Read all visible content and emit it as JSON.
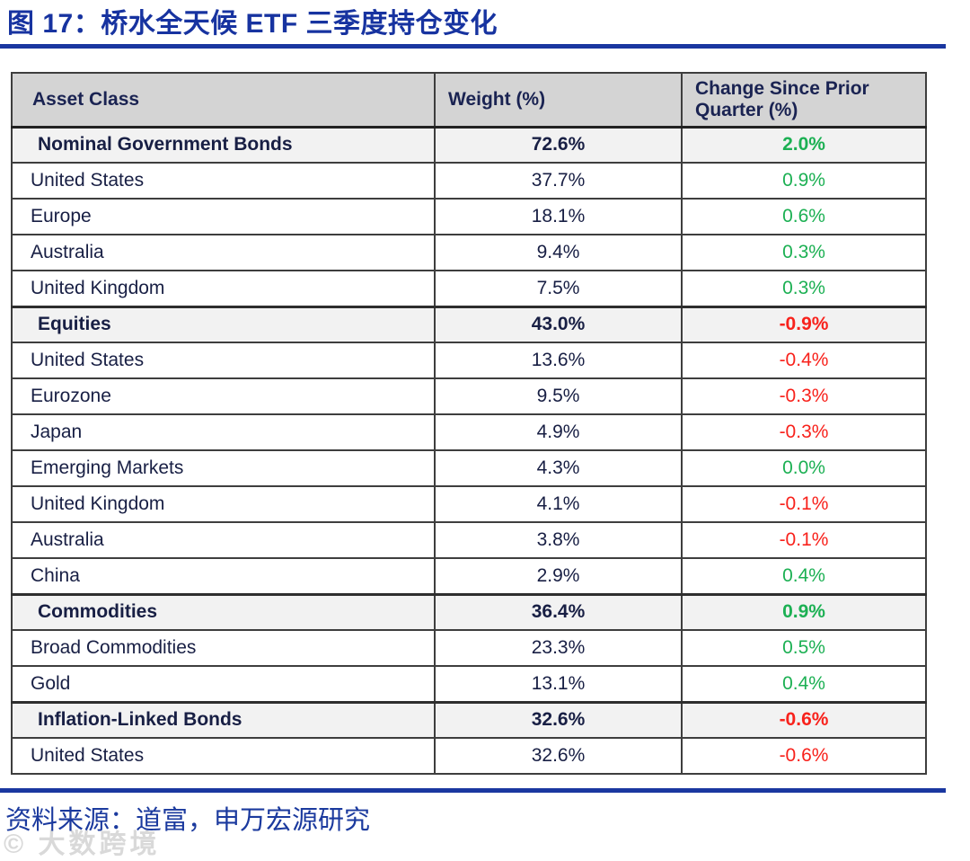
{
  "header": {
    "title": "图 17：桥水全天候 ETF 三季度持仓变化"
  },
  "footer": {
    "source": "资料来源：道富，申万宏源研究",
    "watermark": "© 大数跨境"
  },
  "colors": {
    "title_blue": "#1733A0",
    "rule_blue": "#1A37A0",
    "header_bg": "#D4D4D4",
    "section_bg": "#F2F2F2",
    "text_navy": "#181F44",
    "positive_green": "#1CB053",
    "negative_red": "#F8221C",
    "border_gray": "#3E3E3E"
  },
  "chart_data": {
    "type": "table",
    "title": "桥水全天候 ETF 三季度持仓变化",
    "columns": [
      "Asset Class",
      "Weight (%)",
      "Change Since Prior Quarter (%)"
    ],
    "rows": [
      {
        "asset": "Nominal Government Bonds",
        "weight": "72.6%",
        "change": "2.0%",
        "section": true,
        "trend": "up"
      },
      {
        "asset": "United States",
        "weight": "37.7%",
        "change": "0.9%",
        "section": false,
        "trend": "up"
      },
      {
        "asset": "Europe",
        "weight": "18.1%",
        "change": "0.6%",
        "section": false,
        "trend": "up"
      },
      {
        "asset": "Australia",
        "weight": "9.4%",
        "change": "0.3%",
        "section": false,
        "trend": "up"
      },
      {
        "asset": "United Kingdom",
        "weight": "7.5%",
        "change": "0.3%",
        "section": false,
        "trend": "up"
      },
      {
        "asset": "Equities",
        "weight": "43.0%",
        "change": "-0.9%",
        "section": true,
        "trend": "down"
      },
      {
        "asset": "United States",
        "weight": "13.6%",
        "change": "-0.4%",
        "section": false,
        "trend": "down"
      },
      {
        "asset": "Eurozone",
        "weight": "9.5%",
        "change": "-0.3%",
        "section": false,
        "trend": "down"
      },
      {
        "asset": "Japan",
        "weight": "4.9%",
        "change": "-0.3%",
        "section": false,
        "trend": "down"
      },
      {
        "asset": "Emerging Markets",
        "weight": "4.3%",
        "change": "0.0%",
        "section": false,
        "trend": "up"
      },
      {
        "asset": "United Kingdom",
        "weight": "4.1%",
        "change": "-0.1%",
        "section": false,
        "trend": "down"
      },
      {
        "asset": "Australia",
        "weight": "3.8%",
        "change": "-0.1%",
        "section": false,
        "trend": "down"
      },
      {
        "asset": "China",
        "weight": "2.9%",
        "change": "0.4%",
        "section": false,
        "trend": "up"
      },
      {
        "asset": "Commodities",
        "weight": "36.4%",
        "change": "0.9%",
        "section": true,
        "trend": "up"
      },
      {
        "asset": "Broad Commodities",
        "weight": "23.3%",
        "change": "0.5%",
        "section": false,
        "trend": "up"
      },
      {
        "asset": "Gold",
        "weight": "13.1%",
        "change": "0.4%",
        "section": false,
        "trend": "up"
      },
      {
        "asset": "Inflation-Linked Bonds",
        "weight": "32.6%",
        "change": "-0.6%",
        "section": true,
        "trend": "down"
      },
      {
        "asset": "United States",
        "weight": "32.6%",
        "change": "-0.6%",
        "section": false,
        "trend": "down"
      }
    ]
  }
}
